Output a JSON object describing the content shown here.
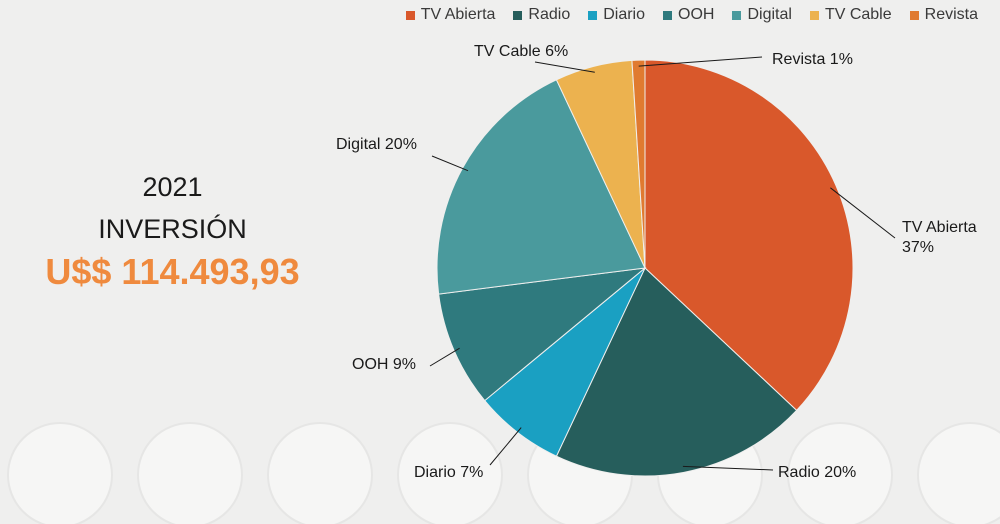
{
  "summary": {
    "year": "2021",
    "label": "INVERSIÓN",
    "amount": "U$$ 114.493,93",
    "amount_color": "#ef8a3e"
  },
  "chart_data": {
    "type": "pie",
    "legend_position": "top-right",
    "categories": [
      "TV Abierta",
      "Radio",
      "Diario",
      "OOH",
      "Digital",
      "TV Cable",
      "Revista"
    ],
    "values": [
      37,
      20,
      7,
      9,
      20,
      6,
      1
    ],
    "colors": [
      "#d9582b",
      "#265e5c",
      "#1aa0c2",
      "#2f7a7e",
      "#4a9a9d",
      "#ecb24f",
      "#e07a30"
    ],
    "data_labels": [
      "TV Abierta\n37%",
      "Radio 20%",
      "Diario 7%",
      "OOH 9%",
      "Digital 20%",
      "TV Cable 6%",
      "Revista 1%"
    ]
  }
}
